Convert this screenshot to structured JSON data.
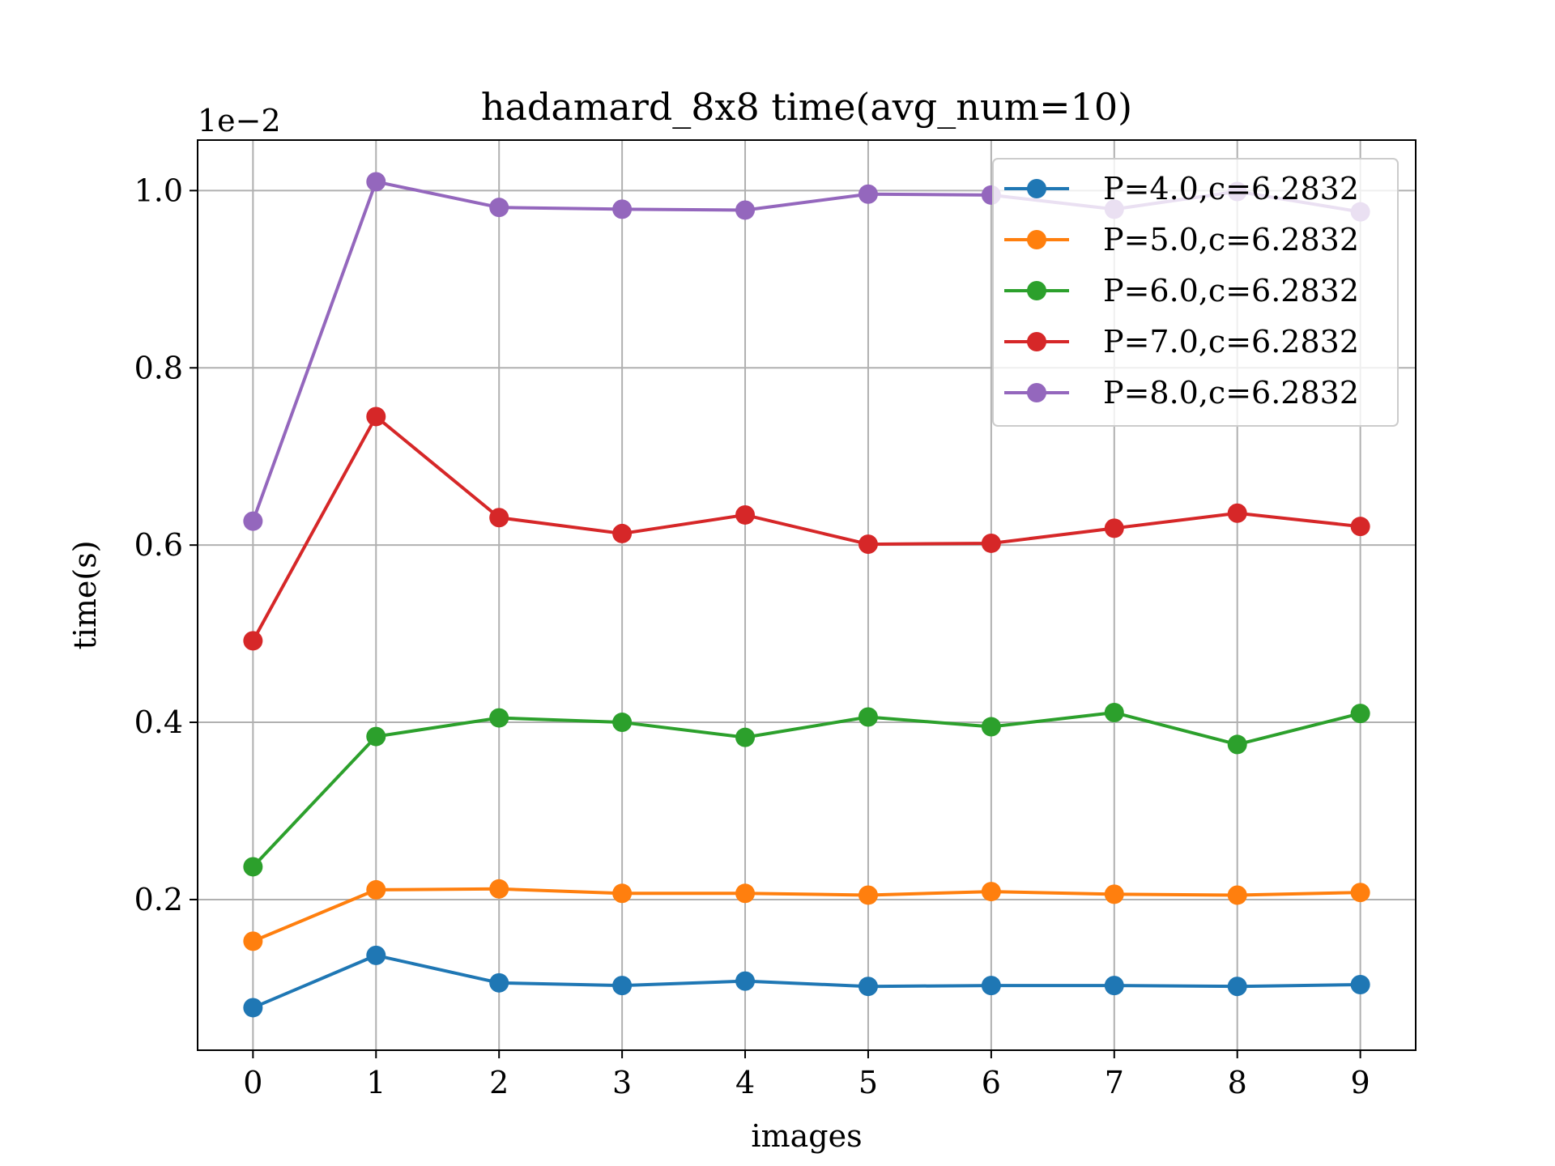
{
  "chart_data": {
    "type": "line",
    "title": "hadamard_8x8 time(avg_num=10)",
    "xlabel": "images",
    "ylabel": "time(s)",
    "offset_label": "1e−2",
    "x": [
      0,
      1,
      2,
      3,
      4,
      5,
      6,
      7,
      8,
      9
    ],
    "xlim": [
      -0.45,
      9.45
    ],
    "ylim": [
      0.0003,
      0.01057
    ],
    "yticks": [
      0.002,
      0.004,
      0.006,
      0.008,
      0.01
    ],
    "ytick_labels": [
      "0.2",
      "0.4",
      "0.6",
      "0.8",
      "1.0"
    ],
    "grid": true,
    "legend_position": "top-right",
    "series": [
      {
        "name": "P=4.0,c=6.2832",
        "color": "#1f77b4",
        "values": [
          0.00078,
          0.00137,
          0.00106,
          0.00103,
          0.00108,
          0.00102,
          0.00103,
          0.00103,
          0.00102,
          0.00104
        ]
      },
      {
        "name": "P=5.0,c=6.2832",
        "color": "#ff7f0e",
        "values": [
          0.00153,
          0.00211,
          0.00212,
          0.00207,
          0.00207,
          0.00205,
          0.00209,
          0.00206,
          0.00205,
          0.00208
        ]
      },
      {
        "name": "P=6.0,c=6.2832",
        "color": "#2ca02c",
        "values": [
          0.00237,
          0.00384,
          0.00405,
          0.004,
          0.00383,
          0.00406,
          0.00395,
          0.00411,
          0.00375,
          0.0041
        ]
      },
      {
        "name": "P=7.0,c=6.2832",
        "color": "#d62728",
        "values": [
          0.00492,
          0.00745,
          0.00631,
          0.00613,
          0.00634,
          0.00601,
          0.00602,
          0.00619,
          0.00636,
          0.00621
        ]
      },
      {
        "name": "P=8.0,c=6.2832",
        "color": "#9467bd",
        "values": [
          0.00627,
          0.0101,
          0.00981,
          0.00979,
          0.00978,
          0.00996,
          0.00995,
          0.00979,
          0.00999,
          0.00976
        ]
      }
    ]
  }
}
